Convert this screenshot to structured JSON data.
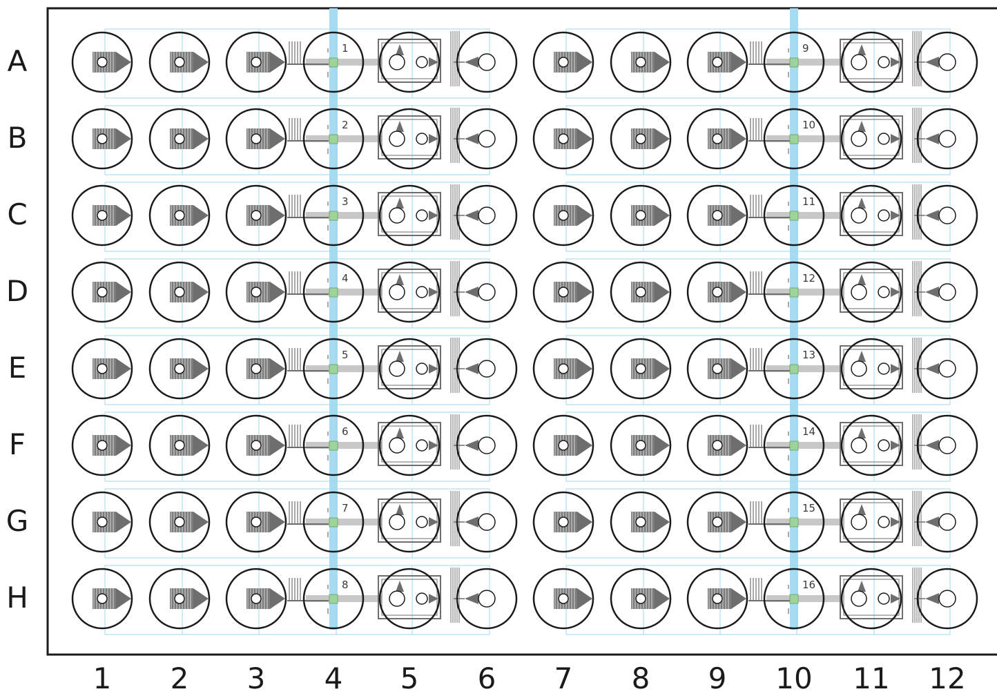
{
  "plate": {
    "rows": [
      "A",
      "B",
      "C",
      "D",
      "E",
      "F",
      "G",
      "H"
    ],
    "columns": [
      "1",
      "2",
      "3",
      "4",
      "5",
      "6",
      "7",
      "8",
      "9",
      "10",
      "11",
      "12"
    ],
    "highlighted_columns": [
      "4",
      "10"
    ],
    "device_labels_left_block": [
      "1",
      "2",
      "3",
      "4",
      "5",
      "6",
      "7",
      "8"
    ],
    "device_labels_right_block": [
      "9",
      "10",
      "11",
      "12",
      "13",
      "14",
      "15",
      "16"
    ]
  },
  "colors": {
    "frame": "#1a1a1a",
    "well_outline": "#1a1a1a",
    "channel_pattern": "#6e6e6e",
    "device_outline": "#9fd8ec",
    "highlight_band": "#a6dcf2",
    "sensor_pad": "#9ed49a"
  }
}
